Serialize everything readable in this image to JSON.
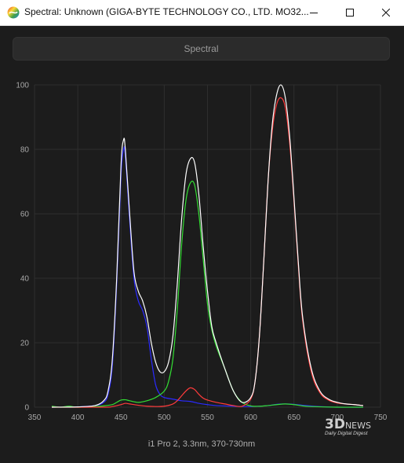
{
  "window": {
    "title": "Spectral: Unknown (GIGA-BYTE TECHNOLOGY CO., LTD. MO32...",
    "minimize_icon": "minimize-icon",
    "maximize_icon": "maximize-icon",
    "close_icon": "close-icon"
  },
  "panel": {
    "header": "Spectral"
  },
  "watermark": {
    "main": "3D",
    "news": "NEWS",
    "sub": "Daily Digital Digest"
  },
  "colors": {
    "white_series": "#ffffff",
    "red_series": "#ff3b3b",
    "green_series": "#33dd33",
    "blue_series": "#2a2aff",
    "grid": "#2e2e2e",
    "background": "#1c1c1c"
  },
  "chart_data": {
    "type": "line",
    "xlabel": "i1 Pro 2, 3.3nm, 370-730nm",
    "xlim": [
      350,
      750
    ],
    "ylim": [
      0,
      100
    ],
    "xticks": [
      350,
      400,
      450,
      500,
      550,
      600,
      650,
      700,
      750
    ],
    "yticks": [
      0,
      20,
      40,
      60,
      80,
      100
    ],
    "grid": true,
    "series": [
      {
        "color": "#ffffff",
        "x": [
          370,
          400,
          420,
          430,
          435,
          440,
          445,
          450,
          453,
          455,
          460,
          465,
          470,
          475,
          480,
          485,
          490,
          495,
          500,
          505,
          510,
          515,
          520,
          525,
          530,
          535,
          540,
          545,
          550,
          555,
          560,
          570,
          580,
          590,
          600,
          605,
          610,
          615,
          620,
          625,
          630,
          635,
          640,
          645,
          650,
          655,
          660,
          670,
          680,
          690,
          700,
          710,
          720,
          730
        ],
        "y": [
          0,
          0.1,
          0.5,
          2,
          5,
          15,
          40,
          75,
          83,
          80,
          60,
          42,
          36,
          33,
          28,
          20,
          14,
          11,
          11,
          14,
          22,
          38,
          58,
          72,
          77,
          76,
          66,
          50,
          36,
          25,
          20,
          12,
          5,
          1.5,
          3,
          8,
          22,
          45,
          70,
          88,
          97,
          100,
          96,
          84,
          65,
          45,
          28,
          12,
          5,
          2.5,
          1.5,
          1,
          0.8,
          0.5
        ]
      },
      {
        "color": "#ff3b3b",
        "x": [
          370,
          430,
          440,
          450,
          455,
          460,
          470,
          480,
          490,
          500,
          510,
          515,
          520,
          525,
          530,
          535,
          540,
          545,
          550,
          560,
          570,
          580,
          590,
          600,
          605,
          610,
          615,
          620,
          625,
          630,
          635,
          640,
          645,
          650,
          655,
          660,
          670,
          680,
          690,
          700,
          710,
          720,
          730
        ],
        "y": [
          0,
          0,
          0.2,
          0.8,
          1.2,
          1,
          0.6,
          0.3,
          0.2,
          0.3,
          1,
          2,
          3.5,
          5,
          6,
          5.5,
          4,
          2.8,
          2.2,
          1.5,
          1,
          0.5,
          0.3,
          2.5,
          8,
          22,
          45,
          70,
          86,
          94,
          96,
          93,
          82,
          64,
          44,
          27,
          11,
          4.5,
          2.2,
          1.3,
          1,
          0.8,
          0.5
        ]
      },
      {
        "color": "#33dd33",
        "x": [
          370,
          380,
          390,
          400,
          420,
          430,
          440,
          445,
          450,
          455,
          460,
          470,
          480,
          490,
          500,
          505,
          510,
          515,
          520,
          525,
          530,
          535,
          540,
          545,
          550,
          555,
          560,
          570,
          580,
          590,
          600,
          610,
          620,
          630,
          640,
          650,
          660,
          670,
          700,
          730
        ],
        "y": [
          0.3,
          0,
          0.3,
          0,
          0.2,
          0.4,
          0.8,
          1.5,
          2.2,
          2.3,
          2,
          1.5,
          2,
          3,
          5,
          8,
          15,
          30,
          50,
          64,
          69.5,
          69,
          60,
          46,
          32,
          24,
          19,
          12,
          5,
          1.5,
          0.4,
          0.3,
          0.5,
          0.8,
          1,
          0.8,
          0.4,
          0.2,
          0,
          0
        ]
      },
      {
        "color": "#2a2aff",
        "x": [
          370,
          400,
          420,
          430,
          435,
          440,
          445,
          450,
          453,
          455,
          460,
          465,
          470,
          475,
          480,
          485,
          490,
          495,
          500,
          510,
          520,
          530,
          540,
          550,
          560,
          580,
          600,
          620,
          630,
          640,
          650,
          660,
          680,
          700,
          730
        ],
        "y": [
          0,
          0.1,
          0.5,
          1.5,
          4,
          13,
          38,
          72,
          80,
          78,
          58,
          40,
          33,
          30,
          25,
          15,
          7,
          4,
          3,
          2.5,
          2,
          1.8,
          1.2,
          0.8,
          0.5,
          0.3,
          0.2,
          0.5,
          0.9,
          1,
          0.9,
          0.6,
          0.2,
          0,
          0
        ]
      }
    ]
  }
}
